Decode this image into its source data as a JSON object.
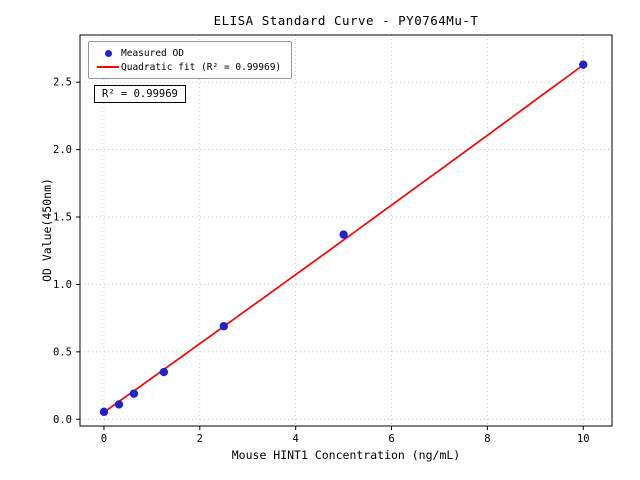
{
  "chart_data": {
    "type": "scatter",
    "title": "ELISA Standard Curve - PY0764Mu-T",
    "xlabel": "Mouse HINT1 Concentration (ng/mL)",
    "ylabel": "OD Value(450nm)",
    "xlim": [
      -0.5,
      10.6
    ],
    "ylim": [
      -0.05,
      2.85
    ],
    "xticks": [
      0,
      2,
      4,
      6,
      8,
      10
    ],
    "xtick_labels": [
      "0",
      "2",
      "4",
      "6",
      "8",
      "10"
    ],
    "yticks": [
      0,
      0.5,
      1,
      1.5,
      2,
      2.5
    ],
    "ytick_labels": [
      "0.0",
      "0.5",
      "1.0",
      "1.5",
      "2.0",
      "2.5"
    ],
    "grid": true,
    "legend_position": "upper-left",
    "annotation": "R² = 0.99969",
    "r_squared": "0.99969",
    "series": [
      {
        "name": "Measured OD",
        "type": "scatter",
        "color": "#2222cc",
        "x": [
          0,
          0.313,
          0.625,
          1.25,
          2.5,
          5,
          10
        ],
        "y": [
          0.055,
          0.11,
          0.19,
          0.35,
          0.69,
          1.37,
          2.63
        ]
      },
      {
        "name": "Quadratic fit (R² = 0.99969)",
        "type": "fit-line",
        "color": "#ff0000",
        "coefficients": {
          "a": 0.0004,
          "b": 0.2536,
          "c": 0.052
        },
        "x_range": [
          0,
          10
        ]
      }
    ]
  }
}
